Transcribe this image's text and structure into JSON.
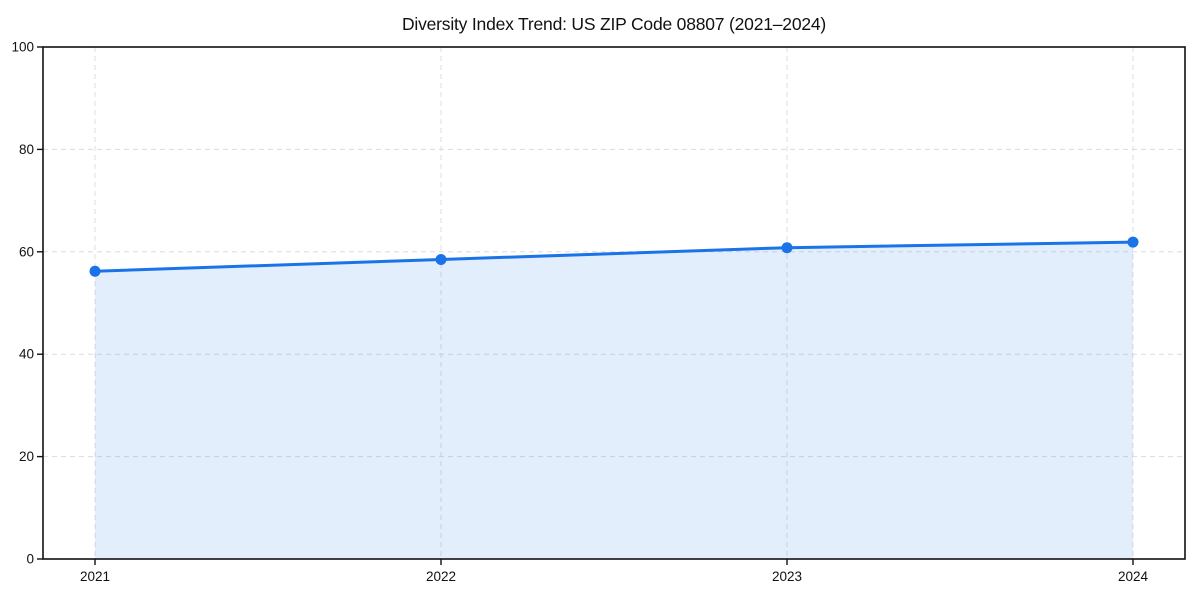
{
  "page": {
    "background_color": "#ffffff"
  },
  "chart_data": {
    "type": "line",
    "title": "Diversity Index Trend: US ZIP Code 08807 (2021–2024)",
    "categories": [
      "2021",
      "2022",
      "2023",
      "2024"
    ],
    "series": [
      {
        "name": "Diversity Index",
        "values": [
          56.2,
          58.5,
          60.8,
          61.9
        ]
      }
    ],
    "xlabel": "",
    "ylabel": "",
    "ylim": [
      0,
      100
    ],
    "yticks": [
      0,
      20,
      40,
      60,
      80,
      100
    ],
    "grid": "on",
    "grid_line_style": "dashed",
    "legend_position": "none",
    "marker_shape": "circle",
    "colors": {
      "line": "#1a73e8",
      "marker": "#1a73e8",
      "area_fill": "rgba(26,115,232,0.12)",
      "gridline": "#dcdcdc",
      "axis_spine": "#111111",
      "tick_label": "#111111",
      "title": "#111111",
      "plot_background": "#ffffff"
    }
  }
}
